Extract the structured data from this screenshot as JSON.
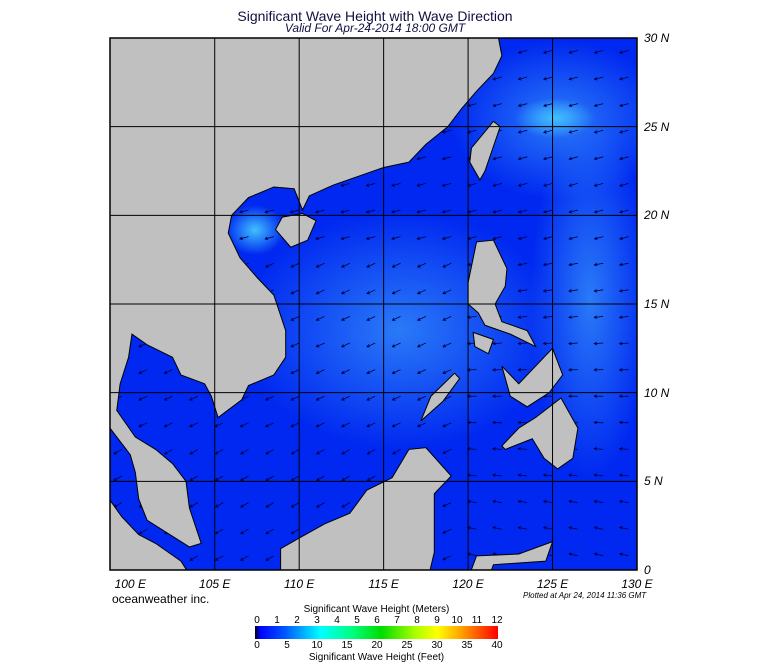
{
  "title": "Significant Wave Height with Wave Direction",
  "subtitle": "Valid For Apr-24-2014 18:00 GMT",
  "map": {
    "extent": {
      "lon": [
        98.8,
        130
      ],
      "lat": [
        0,
        30
      ]
    },
    "lon_labels": [
      "100 E",
      "105 E",
      "110 E",
      "115 E",
      "120 E",
      "125 E",
      "130 E"
    ],
    "lon_values": [
      100,
      105,
      110,
      115,
      120,
      125,
      130
    ],
    "lat_labels": [
      "30 N",
      "25 N",
      "20 N",
      "15 N",
      "10 N",
      "5 N",
      "0"
    ],
    "lat_values": [
      30,
      25,
      20,
      15,
      10,
      5,
      0
    ],
    "land_color": "#c0c0c0",
    "sea_color": "#0028f0",
    "arrow_color": "#000040",
    "prevailing_wave_direction": "from northeast"
  },
  "brand": "oceanweather inc.",
  "plotted": "Plotted at Apr 24, 2014 11:36 GMT",
  "colorbar": {
    "meters_label": "Significant Wave Height (Meters)",
    "meters_ticks": [
      "0",
      "1",
      "2",
      "3",
      "4",
      "5",
      "6",
      "7",
      "8",
      "9",
      "10",
      "11",
      "12"
    ],
    "feet_label": "Significant Wave Height (Feet)",
    "feet_ticks": [
      "0",
      "5",
      "10",
      "15",
      "20",
      "25",
      "30",
      "35",
      "40"
    ]
  }
}
